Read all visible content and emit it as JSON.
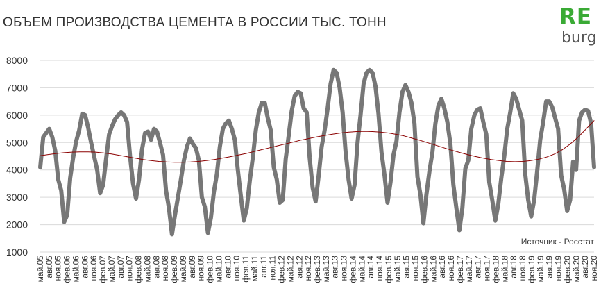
{
  "chart_data": {
    "type": "line",
    "title": "ОБЪЕМ ПРОИЗВОДСТВА ЦЕМЕНТА В РОССИИ ТЫС. ТОНН",
    "source": "Источник - Росстат",
    "ylim": [
      1000,
      8000
    ],
    "yticks": [
      "1000",
      "2000",
      "3000",
      "4000",
      "5000",
      "6000",
      "7000",
      "8000"
    ],
    "grid": true,
    "x_labels": [
      "май.05",
      "авг.05",
      "ноя.05",
      "фев.06",
      "май.06",
      "авг.06",
      "ноя.06",
      "фев.07",
      "май.07",
      "авг.07",
      "ноя.07",
      "фев.08",
      "май.08",
      "авг.08",
      "ноя.08",
      "фев.09",
      "май.09",
      "авг.09",
      "ноя.09",
      "фев.10",
      "май.10",
      "авг.10",
      "ноя.10",
      "фев.11",
      "май.11",
      "авг.11",
      "ноя.11",
      "фев.12",
      "май.12",
      "авг.12",
      "ноя.12",
      "фев.13",
      "май.13",
      "авг.13",
      "ноя.13",
      "фев.14",
      "май.14",
      "авг.14",
      "ноя.14",
      "фев.15",
      "май.15",
      "авг.15",
      "ноя.15",
      "фев.16",
      "май.16",
      "авг.16",
      "ноя.16",
      "фев.17",
      "май.17",
      "авг.17",
      "ноя.17",
      "фев.18",
      "май.18",
      "авг.18",
      "ноя.18",
      "фев.19",
      "май.19",
      "авг.19",
      "ноя.19",
      "фев.20",
      "май.20",
      "авг.20",
      "ноя.20"
    ],
    "series": [
      {
        "color": "#777777",
        "values": [
          4100,
          5200,
          5350,
          5500,
          5200,
          4700,
          3650,
          3250,
          2100,
          2350,
          3700,
          4450,
          5050,
          5450,
          6050,
          6000,
          5550,
          5000,
          4500,
          4000,
          3150,
          3450,
          4400,
          5300,
          5600,
          5850,
          6000,
          6100,
          6000,
          5750,
          4500,
          3500,
          2950,
          3650,
          4750,
          5350,
          5400,
          5100,
          5500,
          5400,
          5000,
          4550,
          3250,
          2600,
          1650,
          2350,
          3000,
          3650,
          4350,
          4850,
          5150,
          4950,
          4800,
          4350,
          3000,
          2650,
          1700,
          2250,
          3200,
          3850,
          4850,
          5500,
          5700,
          5800,
          5500,
          5100,
          4000,
          3050,
          2150,
          2600,
          3600,
          4450,
          5450,
          6100,
          6450,
          6450,
          5900,
          5450,
          4100,
          3650,
          2800,
          2900,
          4400,
          5250,
          6150,
          6700,
          6850,
          6800,
          6250,
          6100,
          4450,
          3350,
          2850,
          3800,
          4850,
          5450,
          6250,
          7150,
          7650,
          7550,
          7000,
          6100,
          4650,
          3650,
          2950,
          3450,
          5000,
          6000,
          7150,
          7550,
          7650,
          7550,
          7050,
          6050,
          4650,
          3800,
          2800,
          3550,
          4550,
          5050,
          6100,
          6850,
          7100,
          6850,
          6450,
          5700,
          3750,
          3100,
          2050,
          3100,
          3950,
          4650,
          5700,
          6350,
          6600,
          6250,
          5750,
          4950,
          3450,
          2600,
          1800,
          2600,
          4050,
          4350,
          5500,
          6000,
          6200,
          6250,
          5750,
          5300,
          3550,
          2900,
          2150,
          2750,
          3700,
          4500,
          5500,
          6100,
          6800,
          6600,
          6200,
          5800,
          3850,
          2900,
          2300,
          2900,
          3950,
          5100,
          5750,
          6500,
          6500,
          6300,
          5900,
          5500,
          3800,
          3300,
          2500,
          2900,
          4300,
          4000,
          5800,
          6100,
          6200,
          6150,
          5700,
          4100
        ],
        "width": 6
      },
      {
        "color": "#8b0000",
        "type": "trend",
        "values": [
          4520,
          4560,
          4600,
          4630,
          4650,
          4660,
          4660,
          4650,
          4620,
          4580,
          4530,
          4480,
          4430,
          4380,
          4340,
          4310,
          4290,
          4280,
          4280,
          4290,
          4310,
          4340,
          4380,
          4430,
          4480,
          4540,
          4600,
          4670,
          4740,
          4810,
          4880,
          4950,
          5020,
          5090,
          5150,
          5210,
          5260,
          5310,
          5350,
          5380,
          5400,
          5410,
          5400,
          5380,
          5350,
          5300,
          5240,
          5160,
          5080,
          4990,
          4900,
          4810,
          4720,
          4640,
          4560,
          4490,
          4430,
          4380,
          4340,
          4310,
          4300,
          4310,
          4340,
          4390,
          4470,
          4580,
          4740,
          4950,
          5200,
          5500,
          5800
        ],
        "width": 1
      }
    ]
  }
}
